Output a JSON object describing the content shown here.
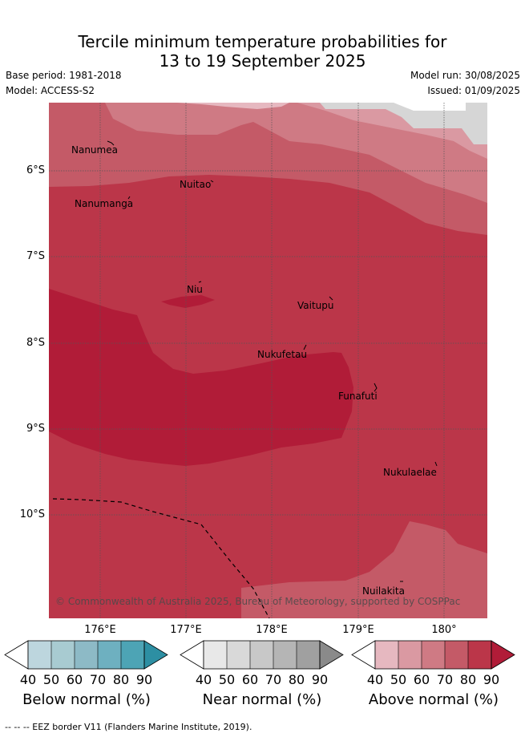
{
  "title": {
    "line1": "Tercile minimum temperature probabilities for",
    "line2": "13 to 19 September 2025"
  },
  "meta": {
    "base_period": "Base period: 1981-2018",
    "model": "Model: ACCESS-S2",
    "model_run": "Model run: 30/08/2025",
    "issued": "Issued: 01/09/2025"
  },
  "axes": {
    "latitudes": [
      "6°S",
      "7°S",
      "8°S",
      "9°S",
      "10°S"
    ],
    "longitudes": [
      "176°E",
      "177°E",
      "178°E",
      "179°E",
      "180°"
    ]
  },
  "places": [
    "Nanumea",
    "Nuitao",
    "Nanumanga",
    "Niu",
    "Vaitupu",
    "Nukufetau",
    "Funafuti",
    "Nukulaelae",
    "Nuilakita"
  ],
  "copyright": "© Commonwealth of Australia 2025, Bureau of Meteorology, supported by COSPPac",
  "colorbars": [
    {
      "label": "Below normal (%)",
      "colors": [
        "#ffffff",
        "#bdd6de",
        "#a8cbd1",
        "#8dbac6",
        "#6eb0c0",
        "#4da4b5",
        "#2d8fa3"
      ]
    },
    {
      "label": "Near normal (%)",
      "colors": [
        "#ffffff",
        "#e8e8e8",
        "#d9d9d9",
        "#c8c8c8",
        "#b5b5b5",
        "#a0a0a0",
        "#8a8a8a"
      ]
    },
    {
      "label": "Above normal (%)",
      "colors": [
        "#ffffff",
        "#e6b8c0",
        "#da99a2",
        "#cf7a84",
        "#c45a67",
        "#bb3649",
        "#b11c38"
      ]
    }
  ],
  "tick_labels": [
    "40",
    "50",
    "60",
    "70",
    "80",
    "90"
  ],
  "footnote": "--  --  -- EEZ border V11 (Flanders Marine Institute, 2019)."
}
